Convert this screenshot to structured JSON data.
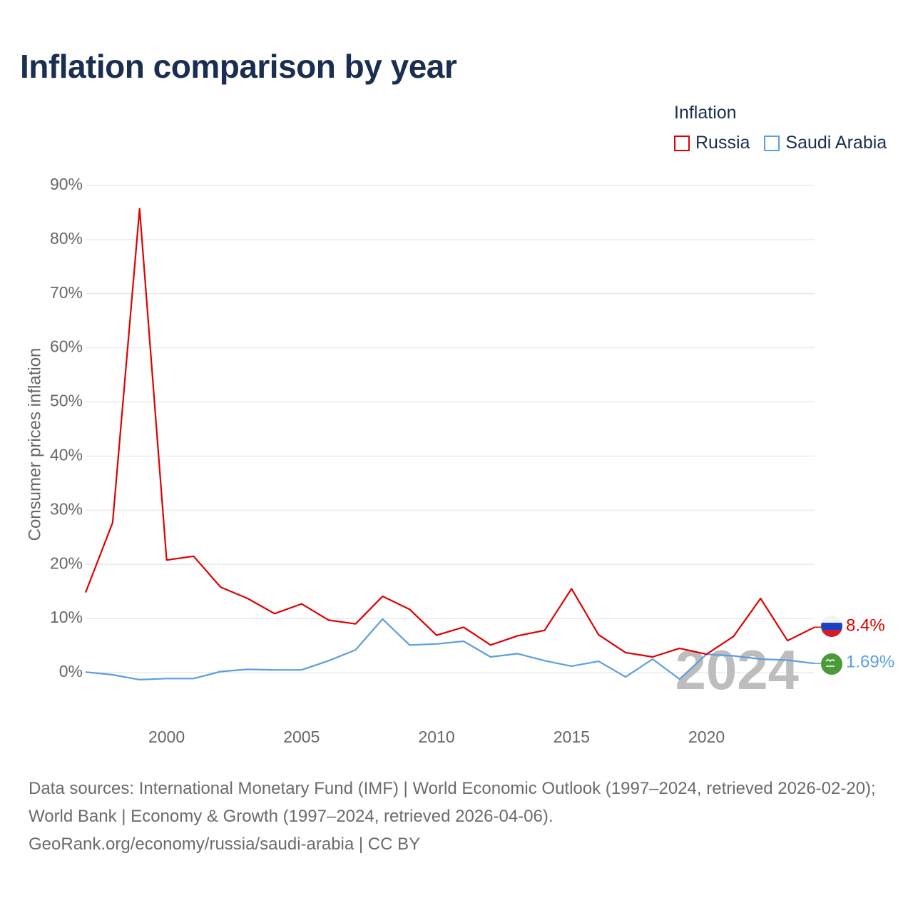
{
  "title": "Inflation comparison by year",
  "legend": {
    "heading": "Inflation",
    "items": [
      {
        "name": "Russia",
        "color": "#e00000"
      },
      {
        "name": "Saudi Arabia",
        "color": "#5b9ee0"
      }
    ]
  },
  "chart_data": {
    "type": "line",
    "title": "Inflation comparison by year",
    "xlabel": "",
    "ylabel": "Consumer prices inflation",
    "xlim": [
      1997,
      2024
    ],
    "ylim": [
      -8,
      90
    ],
    "yticks": [
      0,
      10,
      20,
      30,
      40,
      50,
      60,
      70,
      80,
      90
    ],
    "ytick_labels": [
      "0%",
      "10%",
      "20%",
      "30%",
      "40%",
      "50%",
      "60%",
      "70%",
      "80%",
      "90%"
    ],
    "xticks": [
      2000,
      2005,
      2010,
      2015,
      2020
    ],
    "xtick_labels": [
      "2000",
      "2005",
      "2010",
      "2015",
      "2020"
    ],
    "grid": true,
    "highlight_year": "2024",
    "x": [
      1997,
      1998,
      1999,
      2000,
      2001,
      2002,
      2003,
      2004,
      2005,
      2006,
      2007,
      2008,
      2009,
      2010,
      2011,
      2012,
      2013,
      2014,
      2015,
      2016,
      2017,
      2018,
      2019,
      2020,
      2021,
      2022,
      2023,
      2024
    ],
    "series": [
      {
        "name": "Russia",
        "color": "#e00000",
        "end_label": "8.4%",
        "values": [
          14.8,
          27.7,
          85.7,
          20.8,
          21.5,
          15.8,
          13.7,
          10.9,
          12.7,
          9.7,
          9.0,
          14.1,
          11.7,
          6.9,
          8.4,
          5.1,
          6.8,
          7.8,
          15.5,
          7.0,
          3.7,
          2.9,
          4.5,
          3.4,
          6.7,
          13.7,
          5.9,
          8.4
        ]
      },
      {
        "name": "Saudi Arabia",
        "color": "#5b9ee0",
        "end_label": "1.69%",
        "values": [
          0.1,
          -0.4,
          -1.3,
          -1.1,
          -1.1,
          0.2,
          0.6,
          0.5,
          0.5,
          2.2,
          4.2,
          9.9,
          5.1,
          5.3,
          5.8,
          2.9,
          3.5,
          2.2,
          1.2,
          2.1,
          -0.8,
          2.5,
          -1.2,
          3.4,
          3.1,
          2.5,
          2.3,
          1.69
        ]
      }
    ]
  },
  "source": {
    "text": "Data sources: International Monetary Fund (IMF) | World Economic Outlook (1997–2024, retrieved 2026-02-20); World Bank | Economy & Growth (1997–2024, retrieved 2026-04-06).",
    "credit": "GeoRank.org/economy/russia/saudi-arabia | CC BY"
  },
  "icons": {
    "russia_flag": "russia-flag-icon",
    "saudi_flag": "saudi-arabia-flag-icon"
  }
}
